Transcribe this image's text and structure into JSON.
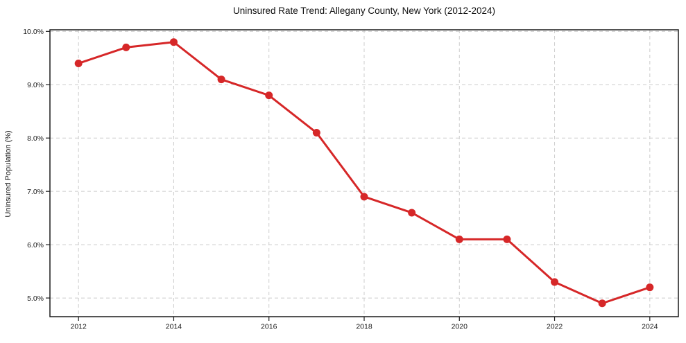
{
  "figure": {
    "background": "#ffffff"
  },
  "chart_data": {
    "type": "line",
    "title": "Uninsured Rate Trend: Allegany County, New York (2012-2024)",
    "xlabel": "",
    "ylabel": "Uninsured Population (%)",
    "x": [
      2012,
      2013,
      2014,
      2015,
      2016,
      2017,
      2018,
      2019,
      2020,
      2021,
      2022,
      2023,
      2024
    ],
    "series": [
      {
        "values": [
          9.4,
          9.7,
          9.8,
          9.1,
          8.8,
          8.1,
          6.9,
          6.6,
          6.1,
          6.1,
          5.3,
          4.9,
          5.2
        ],
        "color": "#d62728",
        "marker": "circle",
        "marker_radius": 5.5,
        "line_width": 3
      }
    ],
    "xlim": [
      2011.4,
      2024.6
    ],
    "ylim": [
      4.65,
      10.03
    ],
    "xticks": [
      {
        "v": 2012,
        "label": "2012"
      },
      {
        "v": 2014,
        "label": "2014"
      },
      {
        "v": 2016,
        "label": "2016"
      },
      {
        "v": 2018,
        "label": "2018"
      },
      {
        "v": 2020,
        "label": "2020"
      },
      {
        "v": 2022,
        "label": "2022"
      },
      {
        "v": 2024,
        "label": "2024"
      }
    ],
    "yticks": [
      {
        "v": 5,
        "label": "5.0%"
      },
      {
        "v": 6,
        "label": "6.0%"
      },
      {
        "v": 7,
        "label": "7.0%"
      },
      {
        "v": 8,
        "label": "8.0%"
      },
      {
        "v": 9,
        "label": "9.0%"
      },
      {
        "v": 10,
        "label": "10.0%"
      }
    ],
    "grid": true,
    "grid_style": "dashed",
    "legend_position": "none",
    "colors": {
      "line": "#d62728",
      "grid": "#cccccc",
      "spine": "#1a1a1a",
      "tick": "#1a1a1a",
      "text": "#1a1a1a",
      "background": "#ffffff"
    }
  }
}
